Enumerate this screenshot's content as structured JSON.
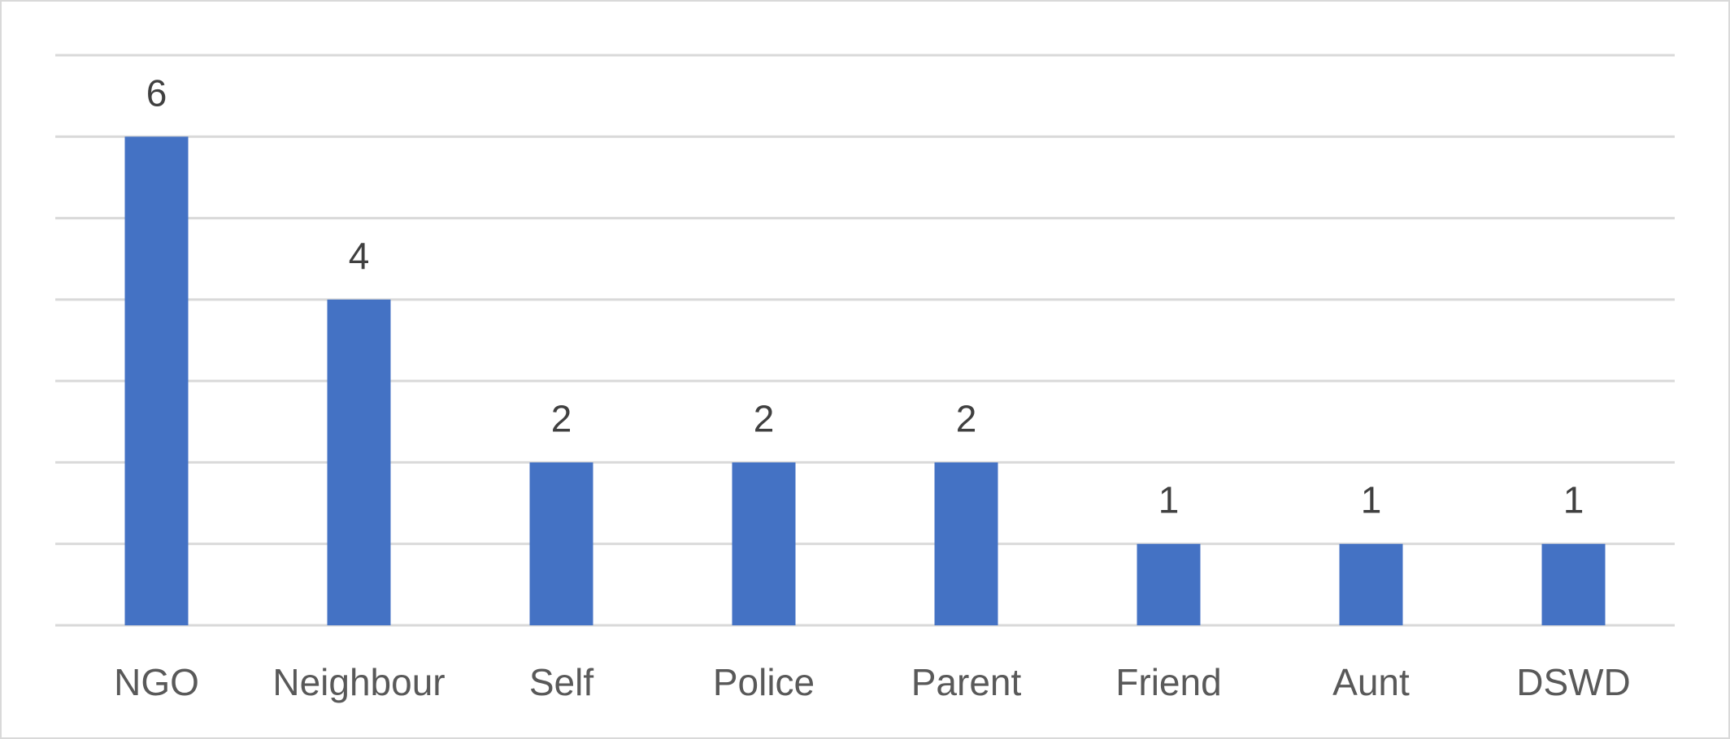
{
  "chart_data": {
    "type": "bar",
    "categories": [
      "NGO",
      "Neighbour",
      "Self",
      "Police",
      "Parent",
      "Friend",
      "Aunt",
      "DSWD"
    ],
    "values": [
      6,
      4,
      2,
      2,
      2,
      1,
      1,
      1
    ],
    "ylim": [
      0,
      7
    ],
    "grid": true,
    "colors": {
      "bar": "#4472c4",
      "gridline": "#d9d9d9",
      "data_label": "#404040",
      "tick_label": "#595959"
    }
  }
}
